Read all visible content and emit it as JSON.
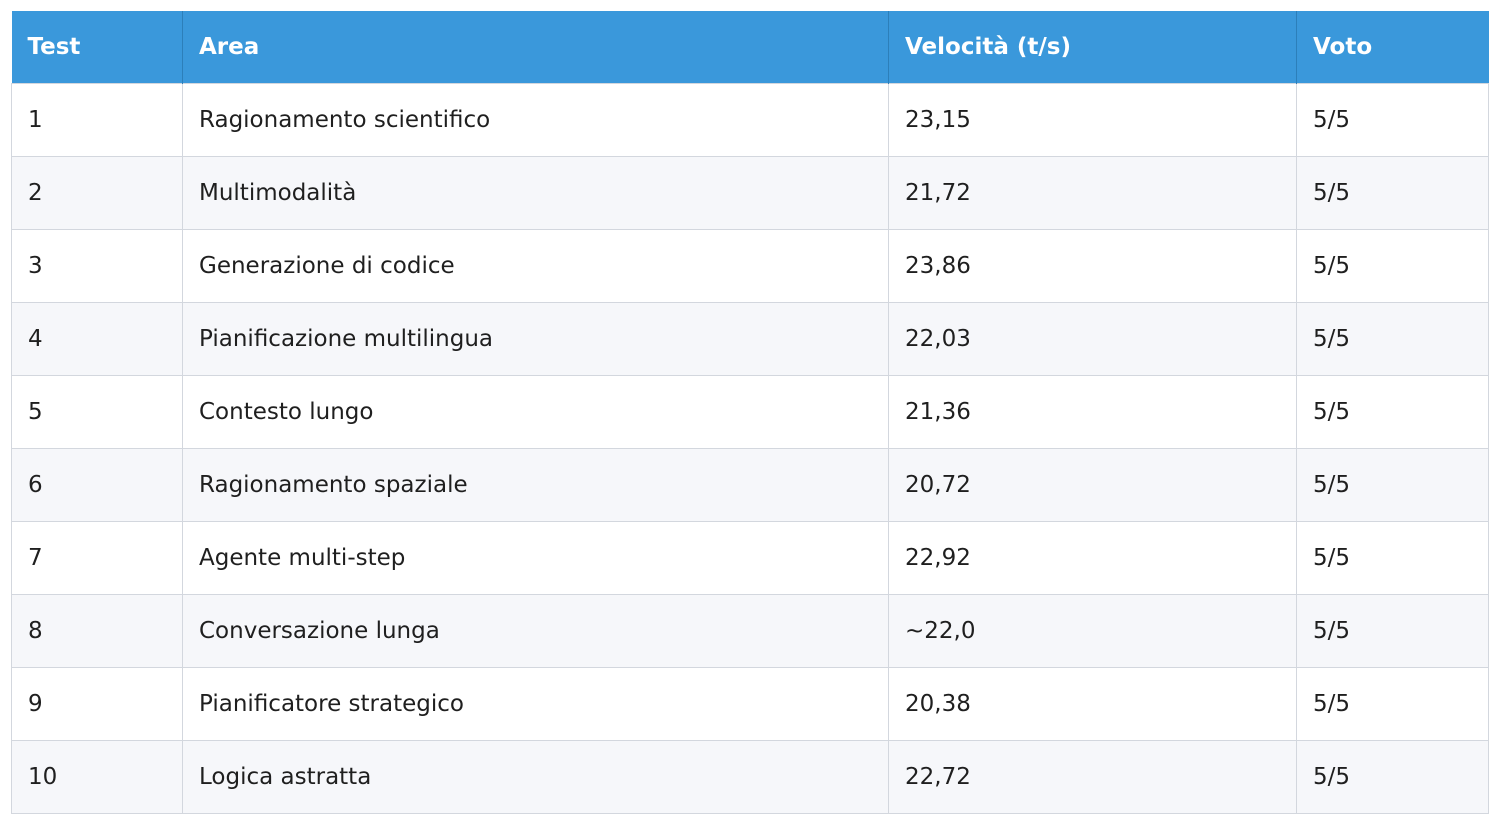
{
  "table": {
    "headers": [
      "Test",
      "Area",
      "Velocità (t/s)",
      "Voto"
    ],
    "rows": [
      [
        "1",
        "Ragionamento scientifico",
        "23,15",
        "5/5"
      ],
      [
        "2",
        "Multimodalità",
        "21,72",
        "5/5"
      ],
      [
        "3",
        "Generazione di codice",
        "23,86",
        "5/5"
      ],
      [
        "4",
        "Pianificazione multilingua",
        "22,03",
        "5/5"
      ],
      [
        "5",
        "Contesto lungo",
        "21,36",
        "5/5"
      ],
      [
        "6",
        "Ragionamento spaziale",
        "20,72",
        "5/5"
      ],
      [
        "7",
        "Agente multi-step",
        "22,92",
        "5/5"
      ],
      [
        "8",
        "Conversazione lunga",
        "~22,0",
        "5/5"
      ],
      [
        "9",
        "Pianificatore strategico",
        "20,38",
        "5/5"
      ],
      [
        "10",
        "Logica astratta",
        "22,72",
        "5/5"
      ]
    ]
  },
  "colors": {
    "header_bg": "#3a98db",
    "header_text": "#ffffff",
    "row_alt_bg": "#f6f7fa",
    "border": "#d3d7de"
  }
}
